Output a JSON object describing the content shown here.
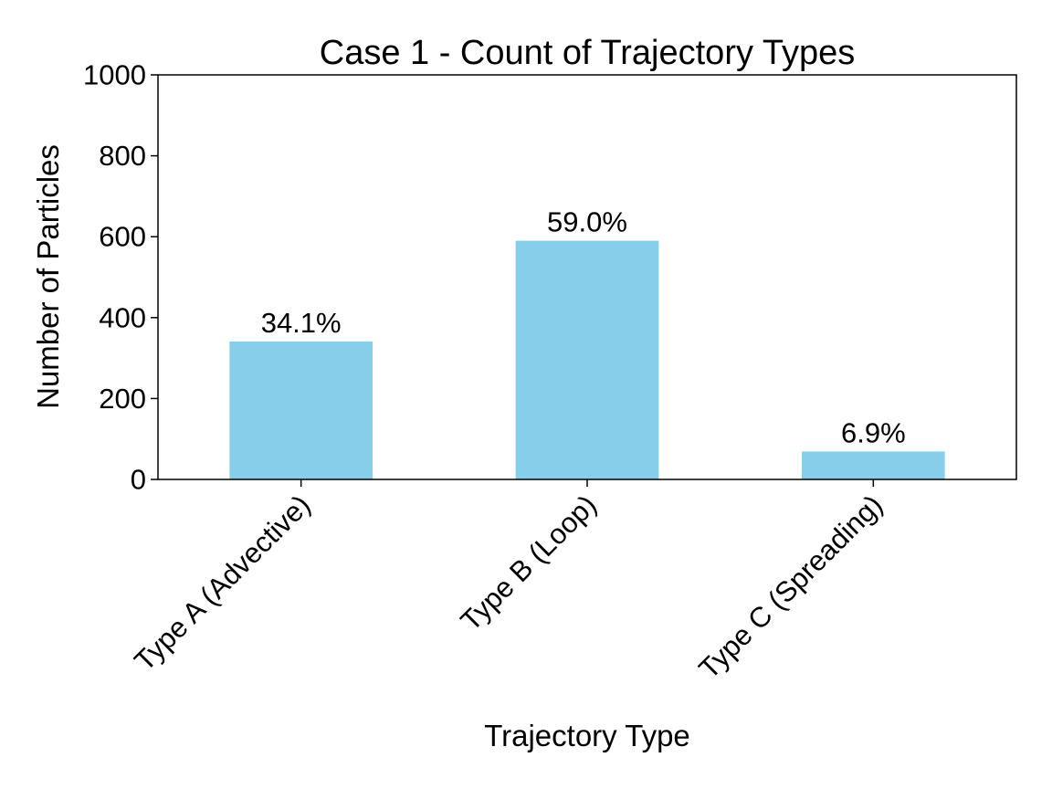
{
  "chart_data": {
    "type": "bar",
    "title": "Case 1 - Count of Trajectory Types",
    "xlabel": "Trajectory Type",
    "ylabel": "Number of Particles",
    "categories": [
      "Type A (Advective)",
      "Type B (Loop)",
      "Type C (Spreading)"
    ],
    "values": [
      341,
      590,
      69
    ],
    "data_labels": [
      "34.1%",
      "59.0%",
      "6.9%"
    ],
    "ylim": [
      0,
      1000
    ],
    "yticks": [
      "0",
      "200",
      "400",
      "600",
      "800",
      "1000"
    ],
    "grid": false,
    "bar_color": "#87CEEB"
  }
}
